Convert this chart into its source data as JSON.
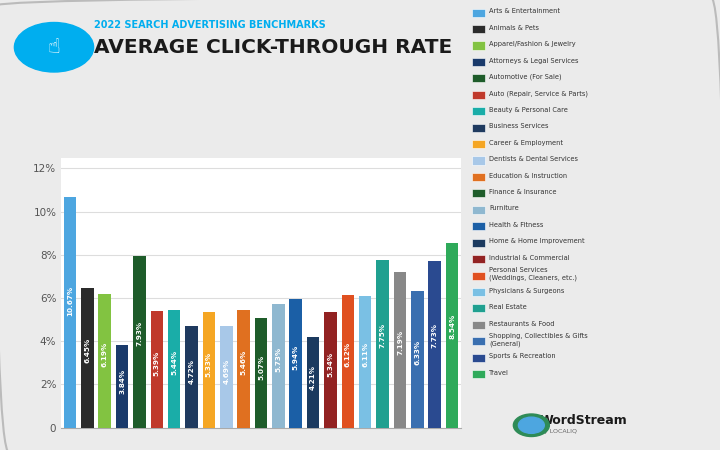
{
  "title": "AVERAGE CLICK-THROUGH RATE",
  "subtitle": "2022 SEARCH ADVERTISING BENCHMARKS",
  "values": [
    10.67,
    6.45,
    6.19,
    3.84,
    7.93,
    5.39,
    5.44,
    4.72,
    5.33,
    4.69,
    5.46,
    5.07,
    5.73,
    5.94,
    4.21,
    5.34,
    6.12,
    6.11,
    7.75,
    7.19,
    6.33,
    7.73,
    8.54
  ],
  "bar_colors": [
    "#4DA6E0",
    "#2B2B2B",
    "#82C341",
    "#1A3A6B",
    "#1E5C2A",
    "#C0392B",
    "#1AADA8",
    "#1F3A5F",
    "#F5A623",
    "#A8C8E8",
    "#E07020",
    "#1E5C2A",
    "#8FB8D0",
    "#1B5FA6",
    "#1B3A5F",
    "#922222",
    "#E05020",
    "#7AC0E4",
    "#20A090",
    "#888888",
    "#3A6FB0",
    "#2A4A90",
    "#2EAA5A"
  ],
  "legend_labels": [
    "Arts & Entertainment",
    "Animals & Pets",
    "Apparel/Fashion & Jewelry",
    "Attorneys & Legal Services",
    "Automotive (For Sale)",
    "Auto (Repair, Service & Parts)",
    "Beauty & Personal Care",
    "Business Services",
    "Career & Employment",
    "Dentists & Dental Services",
    "Education & Instruction",
    "Finance & Insurance",
    "Furniture",
    "Health & Fitness",
    "Home & Home Improvement",
    "Industrial & Commercial",
    "Personal Services\n(Weddings, Cleaners, etc.)",
    "Physicians & Surgeons",
    "Real Estate",
    "Restaurants & Food",
    "Shopping, Collectibles & Gifts\n(General)",
    "Sports & Recreation",
    "Travel"
  ],
  "legend_colors": [
    "#4DA6E0",
    "#2B2B2B",
    "#82C341",
    "#1A3A6B",
    "#1E5C2A",
    "#C0392B",
    "#1AADA8",
    "#1F3A5F",
    "#F5A623",
    "#A8C8E8",
    "#E07020",
    "#1E5C2A",
    "#8FB8D0",
    "#1B5FA6",
    "#1B3A5F",
    "#922222",
    "#E05020",
    "#7AC0E4",
    "#20A090",
    "#888888",
    "#3A6FB0",
    "#2A4A90",
    "#2EAA5A"
  ],
  "value_labels": [
    "10.67%",
    "6.45%",
    "6.19%",
    "3.84%",
    "7.93%",
    "5.39%",
    "5.44%",
    "4.72%",
    "5.33%",
    "4.69%",
    "5.46%",
    "5.07%",
    "5.73%",
    "5.94%",
    "4.21%",
    "5.34%",
    "6.12%",
    "6.11%",
    "7.75%",
    "7.19%",
    "6.33%",
    "7.73%",
    "8.54%"
  ],
  "ylim": [
    0,
    12.5
  ],
  "yticks": [
    0,
    2,
    4,
    6,
    8,
    10,
    12
  ],
  "ytick_labels": [
    "0",
    "2%",
    "4%",
    "6%",
    "8%",
    "10%",
    "12%"
  ],
  "bg_color": "#EBEBEB",
  "plot_bg_color": "#FFFFFF",
  "title_color": "#1A1A1A",
  "subtitle_color": "#00AEEF",
  "grid_color": "#DDDDDD"
}
